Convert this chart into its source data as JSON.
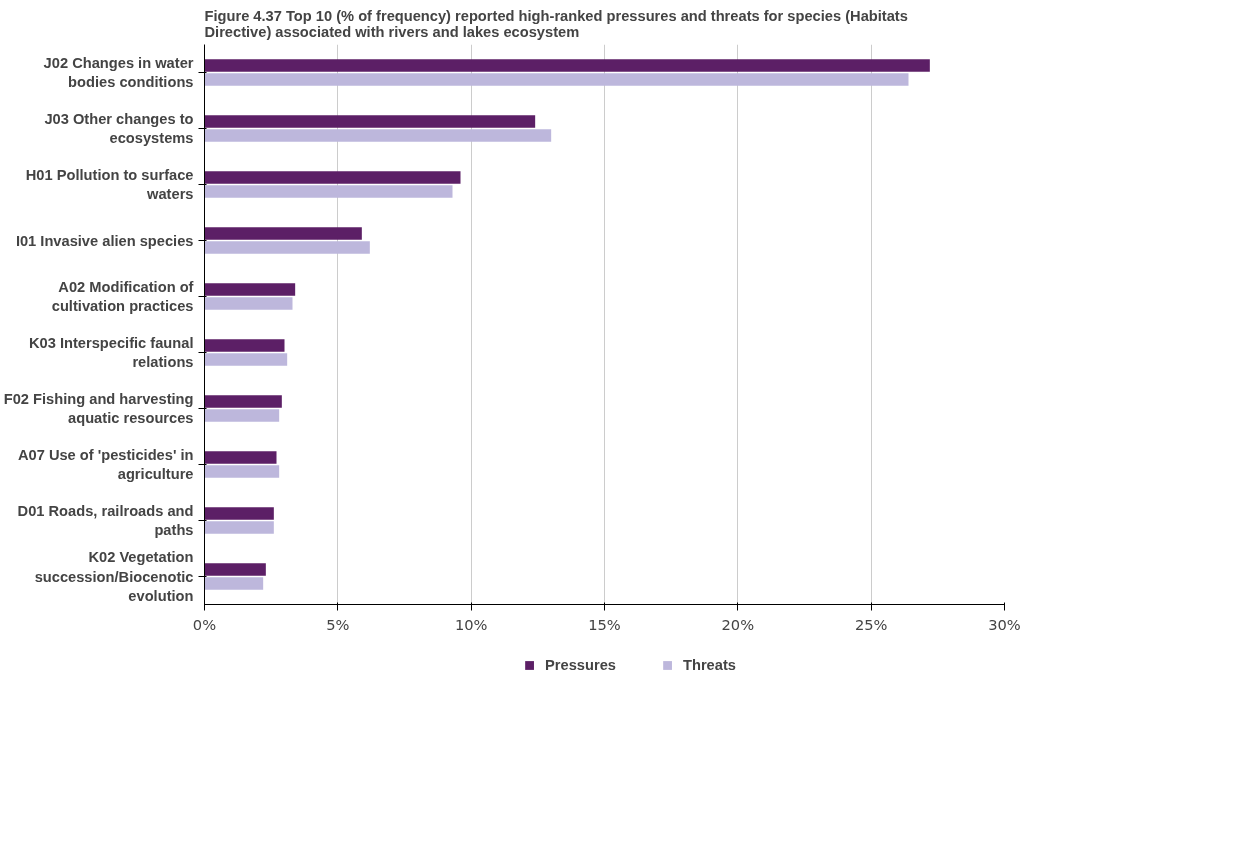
{
  "chart_data": {
    "type": "bar",
    "orientation": "horizontal",
    "title": "Figure 4.37 Top 10 (% of frequency) reported high-ranked pressures and threats for species (Habitats Directive) associated with rivers and lakes ecosystem",
    "categories": [
      "J02 Changes in water bodies conditions",
      "J03 Other changes to ecosystems",
      "H01 Pollution to surface waters",
      "I01 Invasive alien species",
      "A02 Modification of cultivation practices",
      "K03 Interspecific faunal relations",
      "F02 Fishing and harvesting aquatic resources",
      "A07 Use of 'pesticides' in agriculture",
      "D01 Roads, railroads and paths",
      "K02 Vegetation succession/Biocenotic evolution"
    ],
    "series": [
      {
        "name": "Pressures",
        "color": "#5c1f66",
        "values": [
          27.2,
          12.4,
          9.6,
          5.9,
          3.4,
          3.0,
          2.9,
          2.7,
          2.6,
          2.3
        ]
      },
      {
        "name": "Threats",
        "color": "#bdb7dc",
        "values": [
          26.4,
          13.0,
          9.3,
          6.2,
          3.3,
          3.1,
          2.8,
          2.8,
          2.6,
          2.2
        ]
      }
    ],
    "xlim": [
      0,
      30
    ],
    "xticks": [
      {
        "value": 0,
        "label": "0%"
      },
      {
        "value": 5,
        "label": "5%"
      },
      {
        "value": 10,
        "label": "10%"
      },
      {
        "value": 15,
        "label": "15%"
      },
      {
        "value": 20,
        "label": "20%"
      },
      {
        "value": 25,
        "label": "25%"
      },
      {
        "value": 30,
        "label": "30%"
      }
    ],
    "grid": "x",
    "legend": "bottom"
  }
}
